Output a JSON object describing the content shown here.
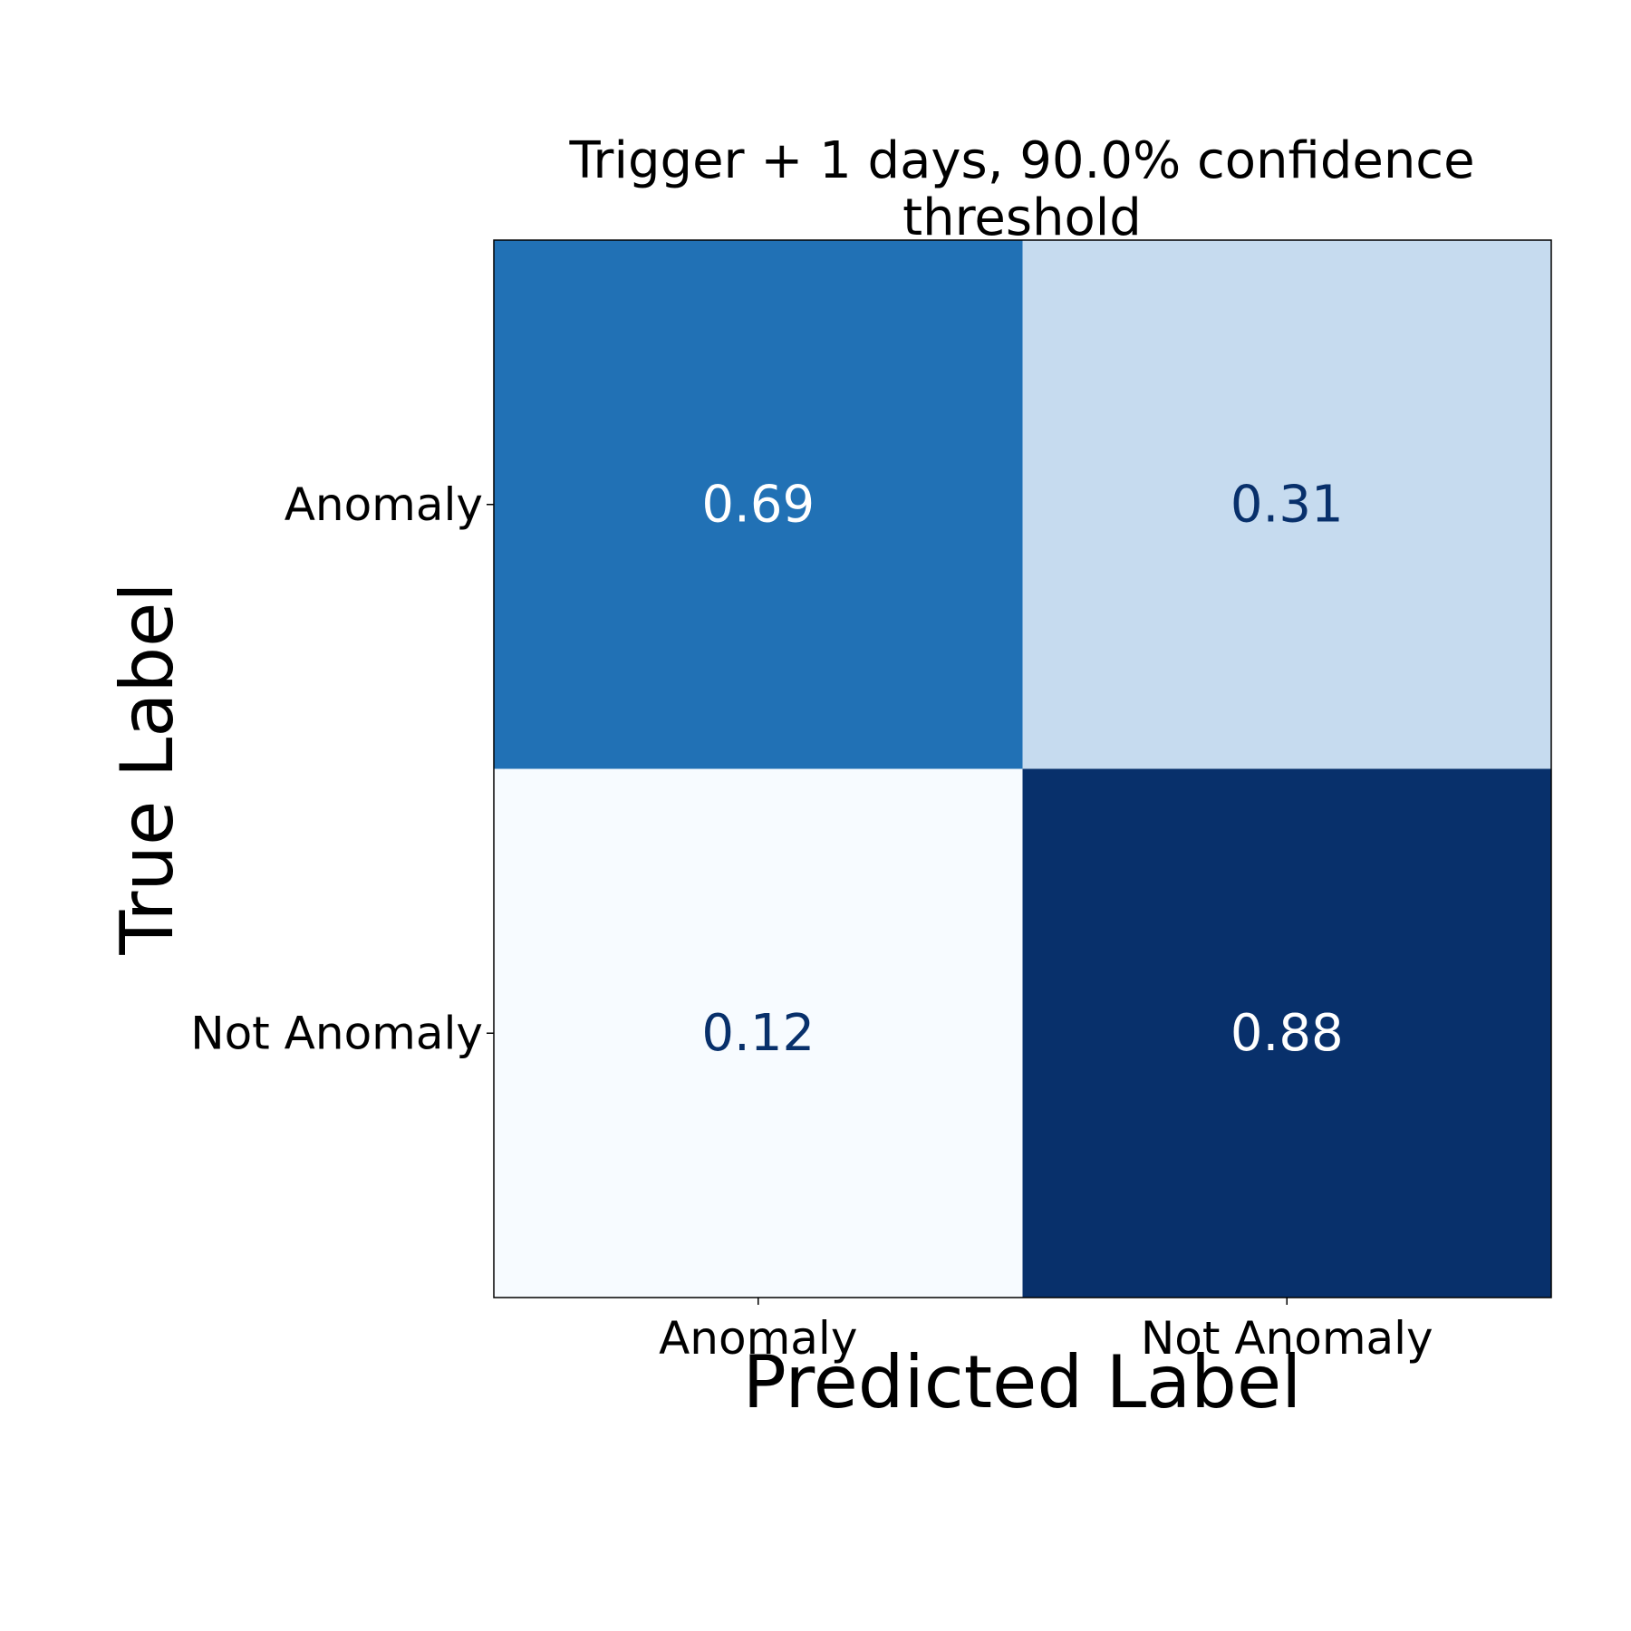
{
  "chart_data": {
    "type": "heatmap",
    "title": "Trigger + 1 days, 90.0% confidence threshold",
    "title_lines": [
      "Trigger + 1 days, 90.0% confidence",
      "threshold"
    ],
    "xlabel": "Predicted Label",
    "ylabel": "True Label",
    "x_categories": [
      "Anomaly",
      "Not Anomaly"
    ],
    "y_categories": [
      "Anomaly",
      "Not Anomaly"
    ],
    "values": [
      [
        0.69,
        0.31
      ],
      [
        0.12,
        0.88
      ]
    ],
    "value_labels": [
      [
        "0.69",
        "0.31"
      ],
      [
        "0.12",
        "0.88"
      ]
    ],
    "colormap": "Blues",
    "colors": {
      "light_text": "#ffffff",
      "dark_text": "#08306b",
      "cell_0_0": "#2171b5",
      "cell_0_1": "#c6dbef",
      "cell_1_0": "#f7fbff",
      "cell_1_1": "#08306b"
    },
    "legend": "none",
    "grid": false
  }
}
